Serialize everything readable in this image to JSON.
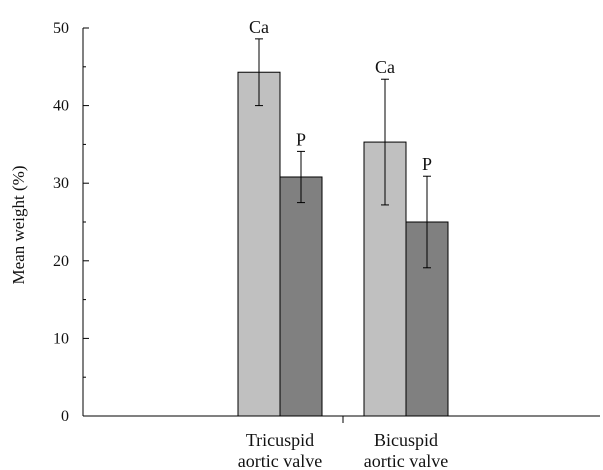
{
  "chart_data": {
    "type": "bar",
    "categories": [
      [
        "Tricuspid",
        "aortic valve"
      ],
      [
        "Bicuspid",
        "aortic valve"
      ]
    ],
    "series": [
      {
        "bar_labels": [
          "Ca",
          "Ca"
        ],
        "values": [
          44.3,
          35.3
        ],
        "errors": [
          4.3,
          8.1
        ],
        "color": "#c0c0c0"
      },
      {
        "bar_labels": [
          "P",
          "P"
        ],
        "values": [
          30.8,
          25.0
        ],
        "errors": [
          3.3,
          5.9
        ],
        "color": "#808080"
      }
    ],
    "title": "",
    "xlabel": "",
    "ylabel": "Mean weight (%)",
    "ylim": [
      0,
      50
    ],
    "yticks": [
      "0",
      "10",
      "20",
      "30",
      "40",
      "50"
    ],
    "grid": false,
    "legend": "none"
  }
}
